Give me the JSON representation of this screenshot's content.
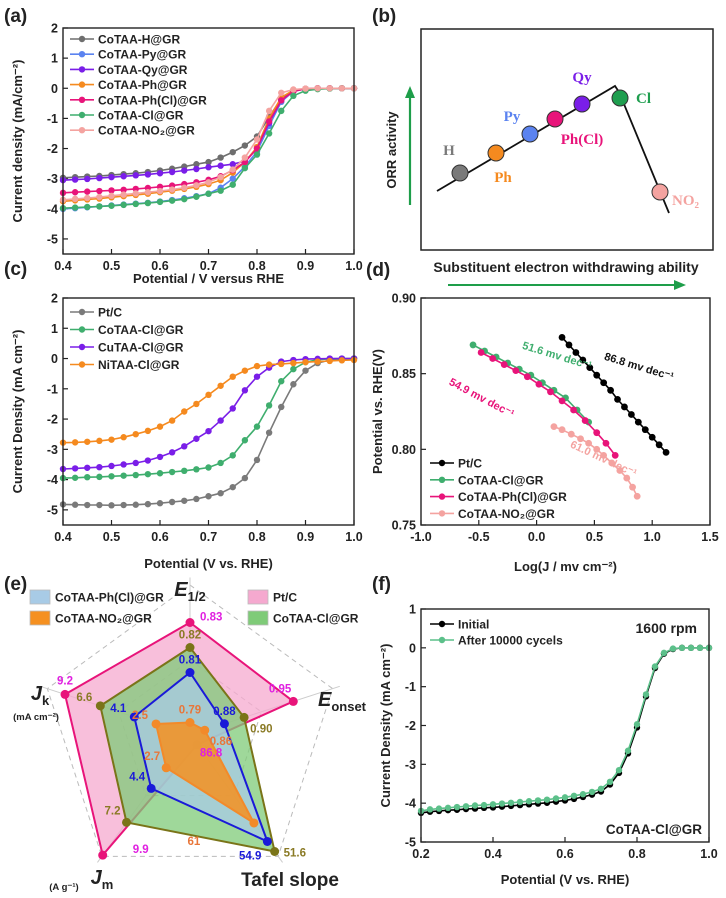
{
  "panel_labels": {
    "a": "(a)",
    "b": "(b)",
    "c": "(c)",
    "d": "(d)",
    "e": "(e)",
    "f": "(f)"
  },
  "chart_data": [
    {
      "panel": "(a)",
      "type": "line",
      "xlabel": "Potential / V versus RHE",
      "ylabel": "Current density (mA/cm⁻²)",
      "xlim": [
        0.4,
        1.0
      ],
      "ylim": [
        -5.5,
        2
      ],
      "xticks": [
        "0.4",
        "0.5",
        "0.6",
        "0.7",
        "0.8",
        "0.9",
        "1.0"
      ],
      "yticks": [
        "2",
        "1",
        "0",
        "-1",
        "-2",
        "-3",
        "-4",
        "-5"
      ],
      "legend": "top-left",
      "x": [
        0.4,
        0.425,
        0.45,
        0.475,
        0.5,
        0.525,
        0.55,
        0.575,
        0.6,
        0.625,
        0.65,
        0.675,
        0.7,
        0.725,
        0.75,
        0.775,
        0.8,
        0.825,
        0.85,
        0.875,
        0.9,
        0.925,
        0.95,
        0.975,
        1.0
      ],
      "series": [
        {
          "name": "CoTAA-H@GR",
          "color": "#6e6e6e",
          "values": [
            -2.97,
            -2.95,
            -2.93,
            -2.91,
            -2.88,
            -2.85,
            -2.82,
            -2.78,
            -2.73,
            -2.67,
            -2.6,
            -2.52,
            -2.45,
            -2.3,
            -2.12,
            -1.9,
            -1.6,
            -0.95,
            -0.35,
            -0.08,
            -0.02,
            0,
            0,
            0,
            0
          ]
        },
        {
          "name": "CoTAA-Py@GR",
          "color": "#5b83f0",
          "values": [
            -4.0,
            -3.98,
            -3.95,
            -3.92,
            -3.89,
            -3.86,
            -3.83,
            -3.8,
            -3.76,
            -3.71,
            -3.65,
            -3.58,
            -3.5,
            -3.3,
            -3.0,
            -2.6,
            -2.1,
            -1.25,
            -0.45,
            -0.1,
            -0.02,
            0,
            0,
            0,
            0
          ]
        },
        {
          "name": "CoTAA-Qy@GR",
          "color": "#7a1ee8",
          "values": [
            -3.05,
            -3.03,
            -3.01,
            -2.98,
            -2.95,
            -2.92,
            -2.89,
            -2.86,
            -2.82,
            -2.78,
            -2.73,
            -2.68,
            -2.62,
            -2.57,
            -2.52,
            -2.42,
            -2.0,
            -1.15,
            -0.4,
            -0.08,
            -0.02,
            0,
            0,
            0,
            0
          ]
        },
        {
          "name": "CoTAA-Ph@GR",
          "color": "#f58a1f",
          "values": [
            -3.75,
            -3.72,
            -3.69,
            -3.66,
            -3.62,
            -3.58,
            -3.54,
            -3.5,
            -3.45,
            -3.4,
            -3.34,
            -3.27,
            -3.18,
            -3.05,
            -2.8,
            -2.45,
            -1.95,
            -1.0,
            -0.3,
            -0.06,
            -0.02,
            0,
            0,
            0,
            0
          ]
        },
        {
          "name": "CoTAA-Ph(Cl)@GR",
          "color": "#e8147a",
          "values": [
            -3.47,
            -3.45,
            -3.43,
            -3.41,
            -3.39,
            -3.37,
            -3.34,
            -3.31,
            -3.27,
            -3.23,
            -3.18,
            -3.12,
            -3.04,
            -2.92,
            -2.72,
            -2.45,
            -2.0,
            -1.1,
            -0.4,
            -0.1,
            -0.02,
            0,
            0,
            0,
            0
          ]
        },
        {
          "name": "CoTAA-Cl@GR",
          "color": "#3fae6e",
          "values": [
            -3.98,
            -3.96,
            -3.94,
            -3.92,
            -3.9,
            -3.87,
            -3.84,
            -3.81,
            -3.77,
            -3.73,
            -3.68,
            -3.6,
            -3.5,
            -3.4,
            -3.2,
            -2.65,
            -2.2,
            -1.5,
            -0.75,
            -0.25,
            -0.08,
            -0.03,
            -0.01,
            0,
            0
          ]
        },
        {
          "name": "CoTAA-NO₂@GR",
          "color": "#f4a3a0",
          "values": [
            -3.7,
            -3.67,
            -3.64,
            -3.61,
            -3.57,
            -3.53,
            -3.49,
            -3.45,
            -3.41,
            -3.36,
            -3.3,
            -3.22,
            -3.12,
            -2.95,
            -2.7,
            -2.3,
            -1.7,
            -0.75,
            -0.15,
            -0.04,
            -0.01,
            0,
            0,
            0,
            0
          ]
        }
      ]
    },
    {
      "panel": "(b)",
      "type": "diagram",
      "ylabel": "ORR activity",
      "xlabel": "Substituent electron withdrawing ability",
      "arrow_color": "#1e9e4a",
      "points": [
        {
          "label": "H",
          "color": "#7a7a7a"
        },
        {
          "label": "Ph",
          "color": "#f58a1f"
        },
        {
          "label": "Py",
          "color": "#5b83f0"
        },
        {
          "label": "Ph(Cl)",
          "color": "#e8147a"
        },
        {
          "label": "Qy",
          "color": "#7a1ee8"
        },
        {
          "label": "Cl",
          "color": "#1f9e4f"
        },
        {
          "label": "NO₂",
          "color": "#f4a3a0"
        }
      ]
    },
    {
      "panel": "(c)",
      "type": "line",
      "xlabel": "Potential (V vs. RHE)",
      "ylabel": "Current Density (mA cm⁻²)",
      "xlim": [
        0.4,
        1.0
      ],
      "ylim": [
        -5.5,
        2
      ],
      "xticks": [
        "0.4",
        "0.5",
        "0.6",
        "0.7",
        "0.8",
        "0.9",
        "1.0"
      ],
      "yticks": [
        "2",
        "1",
        "0",
        "-1",
        "-2",
        "-3",
        "-4",
        "-5"
      ],
      "legend": "top-left",
      "x": [
        0.4,
        0.425,
        0.45,
        0.475,
        0.5,
        0.525,
        0.55,
        0.575,
        0.6,
        0.625,
        0.65,
        0.675,
        0.7,
        0.725,
        0.75,
        0.775,
        0.8,
        0.825,
        0.85,
        0.875,
        0.9,
        0.925,
        0.95,
        0.975,
        1.0
      ],
      "series": [
        {
          "name": "Pt/C",
          "color": "#7a7a7a",
          "values": [
            -4.82,
            -4.83,
            -4.84,
            -4.84,
            -4.85,
            -4.84,
            -4.83,
            -4.81,
            -4.78,
            -4.74,
            -4.7,
            -4.64,
            -4.55,
            -4.45,
            -4.25,
            -3.95,
            -3.35,
            -2.45,
            -1.6,
            -0.85,
            -0.4,
            -0.15,
            -0.05,
            -0.02,
            0
          ]
        },
        {
          "name": "CoTAA-Cl@GR",
          "color": "#3fae6e",
          "values": [
            -3.95,
            -3.94,
            -3.92,
            -3.91,
            -3.89,
            -3.87,
            -3.85,
            -3.82,
            -3.79,
            -3.75,
            -3.71,
            -3.66,
            -3.6,
            -3.45,
            -3.2,
            -2.7,
            -2.25,
            -1.55,
            -0.75,
            -0.35,
            -0.12,
            -0.04,
            -0.01,
            0,
            0
          ]
        },
        {
          "name": "CuTAA-Cl@GR",
          "color": "#7a1ee8",
          "values": [
            -3.65,
            -3.63,
            -3.61,
            -3.59,
            -3.55,
            -3.5,
            -3.45,
            -3.37,
            -3.25,
            -3.1,
            -2.9,
            -2.65,
            -2.4,
            -2.05,
            -1.65,
            -1.05,
            -0.6,
            -0.3,
            -0.1,
            -0.05,
            -0.02,
            -0.01,
            0,
            0,
            0
          ]
        },
        {
          "name": "NiTAA-Cl@GR",
          "color": "#f58a1f",
          "values": [
            -2.78,
            -2.77,
            -2.75,
            -2.72,
            -2.68,
            -2.6,
            -2.5,
            -2.39,
            -2.25,
            -2.05,
            -1.75,
            -1.5,
            -1.2,
            -0.9,
            -0.6,
            -0.4,
            -0.25,
            -0.2,
            -0.18,
            -0.15,
            -0.12,
            -0.1,
            -0.08,
            -0.06,
            -0.05
          ]
        }
      ]
    },
    {
      "panel": "(d)",
      "type": "scatter",
      "xlabel": "Log(J / mv cm⁻²)",
      "ylabel": "Potential vs. RHE(V)",
      "xlim": [
        -1.0,
        1.5
      ],
      "ylim": [
        0.75,
        0.9
      ],
      "xticks": [
        "-1.0",
        "-0.5",
        "0.0",
        "0.5",
        "1.0",
        "1.5"
      ],
      "yticks": [
        "0.90",
        "0.85",
        "0.80",
        "0.75"
      ],
      "legend": "bottom-left",
      "series": [
        {
          "name": "Pt/C",
          "color": "#000000",
          "slope_label": "86.8 mv dec⁻¹",
          "x": [
            0.22,
            0.28,
            0.34,
            0.4,
            0.46,
            0.52,
            0.58,
            0.64,
            0.7,
            0.76,
            0.82,
            0.88,
            0.94,
            1.0,
            1.06,
            1.12
          ],
          "values": [
            0.874,
            0.869,
            0.864,
            0.859,
            0.854,
            0.849,
            0.844,
            0.839,
            0.833,
            0.828,
            0.823,
            0.818,
            0.813,
            0.808,
            0.803,
            0.798
          ]
        },
        {
          "name": "CoTAA-Cl@GR",
          "color": "#3fae6e",
          "slope_label": "51.6 mv dec⁻¹",
          "x": [
            -0.55,
            -0.45,
            -0.35,
            -0.25,
            -0.15,
            -0.05,
            0.05,
            0.15,
            0.25,
            0.35,
            0.45
          ],
          "values": [
            0.869,
            0.865,
            0.861,
            0.857,
            0.853,
            0.849,
            0.844,
            0.839,
            0.834,
            0.826,
            0.818
          ]
        },
        {
          "name": "CoTAA-Ph(Cl)@GR",
          "color": "#e8147a",
          "slope_label": "54.9 mv dec⁻¹",
          "x": [
            -0.48,
            -0.38,
            -0.28,
            -0.18,
            -0.08,
            0.02,
            0.12,
            0.22,
            0.32,
            0.42,
            0.52,
            0.6,
            0.68
          ],
          "values": [
            0.864,
            0.86,
            0.856,
            0.852,
            0.848,
            0.843,
            0.838,
            0.832,
            0.826,
            0.819,
            0.811,
            0.804,
            0.796
          ]
        },
        {
          "name": "CoTAA-NO₂@GR",
          "color": "#f4a3a0",
          "slope_label": "61.0 mv dec⁻¹",
          "x": [
            0.15,
            0.22,
            0.3,
            0.38,
            0.45,
            0.52,
            0.58,
            0.65,
            0.72,
            0.78,
            0.83,
            0.87
          ],
          "values": [
            0.815,
            0.813,
            0.81,
            0.807,
            0.804,
            0.8,
            0.796,
            0.791,
            0.786,
            0.781,
            0.775,
            0.769
          ]
        }
      ]
    },
    {
      "panel": "(e)",
      "type": "radar",
      "axes": [
        {
          "label": "E",
          "sub": "1/2",
          "unit": "",
          "range": [
            0.785,
            0.845
          ]
        },
        {
          "label": "E",
          "sub": "onset",
          "unit": "",
          "range": [
            0.845,
            0.99
          ]
        },
        {
          "label": "Tafel slope",
          "sub": "",
          "unit": "",
          "range": [
            90,
            50
          ]
        },
        {
          "label": "J",
          "sub": "m",
          "unit": "(A g⁻¹)",
          "range": [
            0,
            10
          ]
        },
        {
          "label": "J",
          "sub": "k",
          "unit": "(mA cm⁻²)",
          "range": [
            0,
            10.5
          ]
        }
      ],
      "legend": "top",
      "series": [
        {
          "name": "Pt/C",
          "fill": "#f5a9cf",
          "stroke": "#e8147a",
          "label_color": "#e020e0",
          "values": [
            0.83,
            0.95,
            86.8,
            9.9,
            9.2
          ],
          "value_labels": [
            "0.83",
            "0.95",
            "86.8",
            "9.9",
            "9.2"
          ]
        },
        {
          "name": "CoTAA-Cl@GR",
          "fill": "#7fcb78",
          "stroke": "#7a7418",
          "label_color": "#8a7a25",
          "values": [
            0.82,
            0.9,
            51.6,
            7.2,
            6.6
          ],
          "value_labels": [
            "0.82",
            "0.90",
            "51.6",
            "7.2",
            "6.6"
          ]
        },
        {
          "name": "CoTAA-Ph(Cl)@GR",
          "fill": "#a8cbe6",
          "stroke": "#1a1ad8",
          "label_color": "#1a1ad8",
          "values": [
            0.81,
            0.88,
            54.9,
            4.4,
            4.1
          ],
          "value_labels": [
            "0.81",
            "0.88",
            "54.9",
            "4.4",
            "4.1"
          ]
        },
        {
          "name": "CoTAA-NO₂@GR",
          "fill": "#f59020",
          "stroke": "#f28a2a",
          "label_color": "#e8763a",
          "values": [
            0.79,
            0.86,
            61,
            2.7,
            2.5
          ],
          "value_labels": [
            "0.79",
            "0.86",
            "61",
            "2.7",
            "2.5"
          ]
        }
      ]
    },
    {
      "panel": "(f)",
      "type": "line",
      "xlabel": "Potential (V vs. RHE)",
      "ylabel": "Current Density (mA cm⁻²)",
      "xlim": [
        0.2,
        1.0
      ],
      "ylim": [
        -5,
        1
      ],
      "xticks": [
        "0.2",
        "0.4",
        "0.6",
        "0.8",
        "1.0"
      ],
      "yticks": [
        "1",
        "0",
        "-1",
        "-2",
        "-3",
        "-4",
        "-5"
      ],
      "legend": "top-left",
      "annotations": [
        "1600 rpm",
        "CoTAA-Cl@GR"
      ],
      "x": [
        0.2,
        0.225,
        0.25,
        0.275,
        0.3,
        0.325,
        0.35,
        0.375,
        0.4,
        0.425,
        0.45,
        0.475,
        0.5,
        0.525,
        0.55,
        0.575,
        0.6,
        0.625,
        0.65,
        0.675,
        0.7,
        0.725,
        0.75,
        0.775,
        0.8,
        0.825,
        0.85,
        0.875,
        0.9,
        0.925,
        0.95,
        0.975,
        1.0
      ],
      "series": [
        {
          "name": "Initial",
          "color": "#000000",
          "values": [
            -4.25,
            -4.22,
            -4.2,
            -4.18,
            -4.17,
            -4.15,
            -4.14,
            -4.12,
            -4.11,
            -4.09,
            -4.07,
            -4.05,
            -4.03,
            -4.01,
            -3.99,
            -3.96,
            -3.93,
            -3.89,
            -3.84,
            -3.78,
            -3.7,
            -3.52,
            -3.22,
            -2.72,
            -2.05,
            -1.25,
            -0.52,
            -0.15,
            -0.03,
            0,
            0,
            0,
            0
          ]
        },
        {
          "name": "After 10000 cycels",
          "color": "#5cc08a",
          "values": [
            -4.2,
            -4.16,
            -4.14,
            -4.12,
            -4.1,
            -4.08,
            -4.06,
            -4.05,
            -4.03,
            -4.01,
            -3.99,
            -3.97,
            -3.95,
            -3.93,
            -3.91,
            -3.88,
            -3.85,
            -3.81,
            -3.77,
            -3.71,
            -3.63,
            -3.45,
            -3.15,
            -2.65,
            -1.97,
            -1.2,
            -0.48,
            -0.13,
            -0.02,
            0,
            0,
            0,
            0
          ]
        }
      ]
    }
  ]
}
